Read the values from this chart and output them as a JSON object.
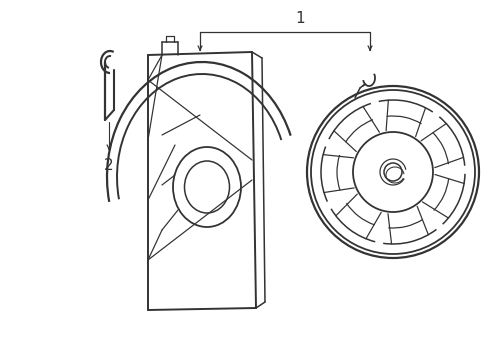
{
  "bg_color": "#ffffff",
  "lc": "#333333",
  "lw": 1.1,
  "figsize": [
    4.89,
    3.6
  ],
  "dpi": 100,
  "label1": "1",
  "label2": "2"
}
